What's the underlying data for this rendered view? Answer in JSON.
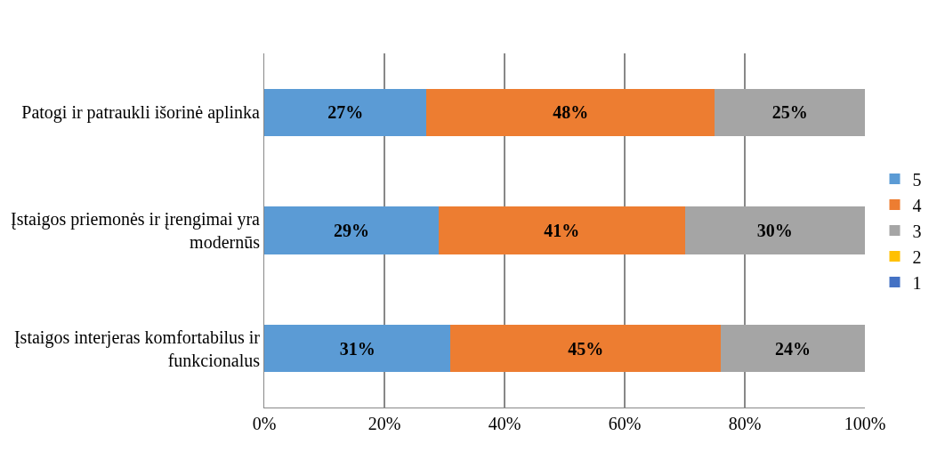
{
  "chart_data": {
    "type": "bar",
    "orientation": "horizontal",
    "stacked": true,
    "categories": [
      "Patogi ir patraukli išorinė aplinka",
      "Įstaigos priemonės ir įrengimai yra modernūs",
      "Įstaigos interjeras komfortabilus ir funkcionalus"
    ],
    "series": [
      {
        "name": "5",
        "color": "#5b9bd5",
        "values": [
          27,
          29,
          31
        ],
        "value_labels": [
          "27%",
          "29%",
          "31%"
        ]
      },
      {
        "name": "4",
        "color": "#ed7d31",
        "values": [
          48,
          41,
          45
        ],
        "value_labels": [
          "48%",
          "41%",
          "45%"
        ]
      },
      {
        "name": "3",
        "color": "#a5a5a5",
        "values": [
          25,
          30,
          24
        ],
        "value_labels": [
          "25%",
          "30%",
          "24%"
        ]
      },
      {
        "name": "2",
        "color": "#ffc000",
        "values": [
          0,
          0,
          0
        ],
        "value_labels": [
          null,
          null,
          null
        ]
      },
      {
        "name": "1",
        "color": "#4472c4",
        "values": [
          0,
          0,
          0
        ],
        "value_labels": [
          null,
          null,
          null
        ]
      }
    ],
    "xlim": [
      0,
      100
    ],
    "xticks": [
      {
        "value": 0,
        "label": "0%"
      },
      {
        "value": 20,
        "label": "20%"
      },
      {
        "value": 40,
        "label": "40%"
      },
      {
        "value": 60,
        "label": "60%"
      },
      {
        "value": 80,
        "label": "80%"
      },
      {
        "value": 100,
        "label": "100%"
      }
    ],
    "grid": "x",
    "legend": "right"
  }
}
